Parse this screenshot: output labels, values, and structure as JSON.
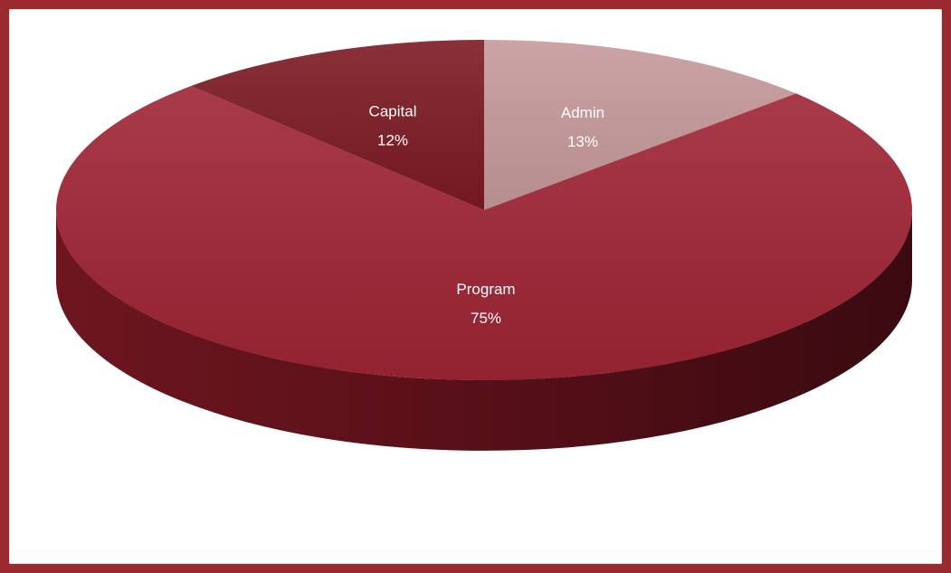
{
  "chart_data": {
    "type": "pie",
    "style": "3d",
    "title": "",
    "legend": "none",
    "slices": [
      {
        "label": "Program",
        "value": 75,
        "display": "75%",
        "color": "#a02535"
      },
      {
        "label": "Admin",
        "value": 13,
        "display": "13%",
        "color": "#c79a9c"
      },
      {
        "label": "Capital",
        "value": 12,
        "display": "12%",
        "color": "#7d1a24"
      }
    ]
  },
  "colors": {
    "page_border": "#9b2a30",
    "background": "#ffffff"
  }
}
